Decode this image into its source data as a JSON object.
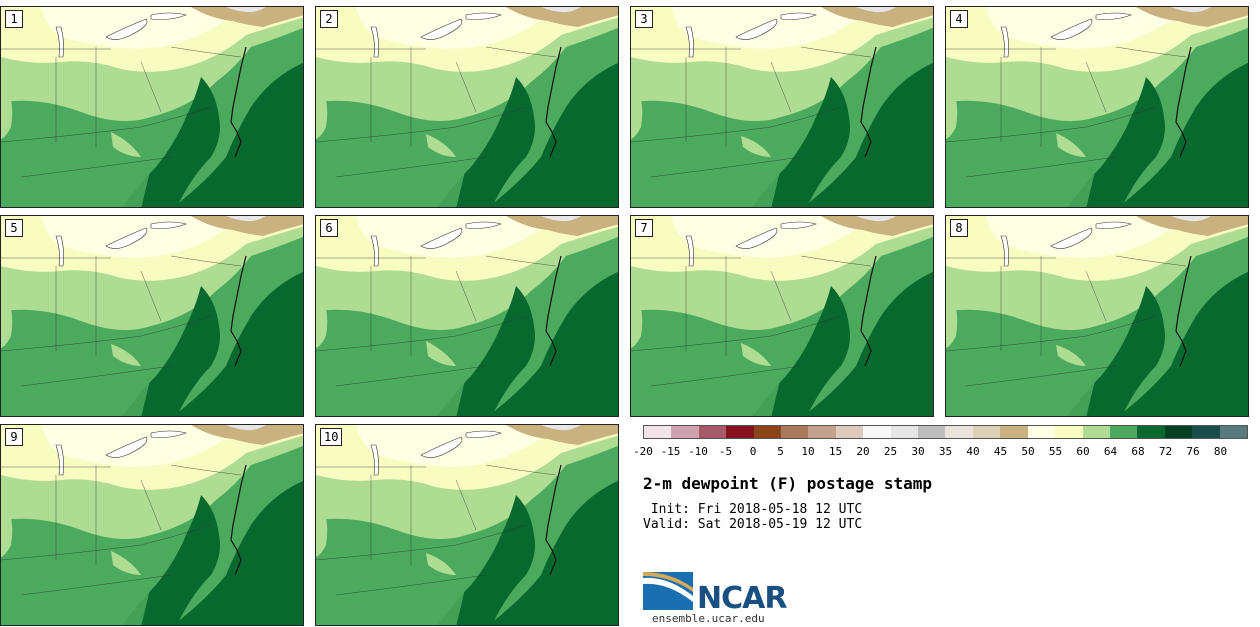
{
  "panels": [
    {
      "label": "1"
    },
    {
      "label": "2"
    },
    {
      "label": "3"
    },
    {
      "label": "4"
    },
    {
      "label": "5"
    },
    {
      "label": "6"
    },
    {
      "label": "7"
    },
    {
      "label": "8"
    },
    {
      "label": "9"
    },
    {
      "label": "10"
    }
  ],
  "colorbar": {
    "colors": [
      "#f3e4ea",
      "#cfa4b0",
      "#a75a68",
      "#86141f",
      "#8c4419",
      "#a87b5c",
      "#c4a18f",
      "#dfcbbd",
      "#f7f7fa",
      "#e6e6e6",
      "#bdbdbd",
      "#e8e4db",
      "#dcd1b3",
      "#c9b27f",
      "#ffffe4",
      "#f9fcc0",
      "#aedc92",
      "#4caa5e",
      "#07692e",
      "#004121",
      "#1b4c4c",
      "#577a7d"
    ],
    "tick_labels": [
      "-20",
      "-15",
      "-10",
      "-5",
      "0",
      "5",
      "10",
      "15",
      "20",
      "25",
      "30",
      "35",
      "40",
      "45",
      "50",
      "55",
      "60",
      "64",
      "68",
      "72",
      "76",
      "80"
    ]
  },
  "title": "2-m dewpoint (F) postage stamp",
  "init_line": " Init: Fri 2018-05-18 12 UTC",
  "valid_line": "Valid: Sat 2018-05-19 12 UTC",
  "logo": {
    "text": "NCAR",
    "site": "ensemble.ucar.edu"
  },
  "map_colors": {
    "ocean": "#07692e",
    "dark": "#004121",
    "green": "#4caa5e",
    "light_green": "#aedc92",
    "yellow": "#f9fcc0",
    "pale": "#ffffe4",
    "tan": "#c9b27f",
    "gray": "#e6e6e6"
  }
}
